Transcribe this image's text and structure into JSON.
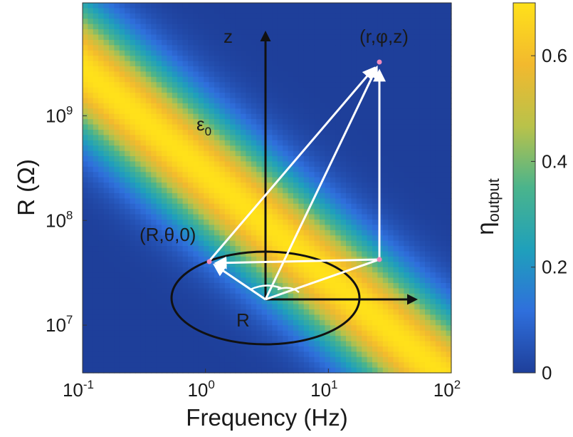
{
  "chart_data": {
    "type": "heatmap",
    "xlabel": "Frequency (Hz)",
    "ylabel": "R (Ω)",
    "x_scale": "log",
    "y_scale": "log",
    "xlim": [
      0.1,
      100
    ],
    "ylim": [
      3500000,
      12000000000
    ],
    "x_ticks": [
      {
        "value": 0.1,
        "mantissa": "10",
        "exp": "-1"
      },
      {
        "value": 1,
        "mantissa": "10",
        "exp": "0"
      },
      {
        "value": 10,
        "mantissa": "10",
        "exp": "1"
      },
      {
        "value": 100,
        "mantissa": "10",
        "exp": "2"
      }
    ],
    "y_ticks": [
      {
        "value": 10000000,
        "mantissa": "10",
        "exp": "7"
      },
      {
        "value": 100000000,
        "mantissa": "10",
        "exp": "8"
      },
      {
        "value": 1000000000,
        "mantissa": "10",
        "exp": "9"
      }
    ],
    "colorbar": {
      "label_main": "η",
      "label_sub": "output",
      "range": [
        0,
        0.7
      ],
      "ticks": [
        {
          "value": 0,
          "label": "0"
        },
        {
          "value": 0.2,
          "label": "0.2"
        },
        {
          "value": 0.4,
          "label": "0.4"
        },
        {
          "value": 0.6,
          "label": "0.6"
        }
      ],
      "colors": [
        "#1e3f9a",
        "#2f6fdc",
        "#1fa0bb",
        "#4ab48c",
        "#b9c24a",
        "#f2b92e",
        "#ffe11a"
      ]
    },
    "field": {
      "description_of_model": "efficiency peaks along diagonal band where R·f ≈ constant",
      "peak_value": 0.7,
      "peak_log_RF": 8.45,
      "band_width_decades": 0.45
    },
    "annotations": {
      "eps": {
        "main": "ε",
        "sub": "0",
        "x": 0.9,
        "y": 900000000
      },
      "z_label": {
        "text": "z"
      },
      "point_top": {
        "text": "(r,φ,z)"
      },
      "point_left": {
        "text": "(R,θ,0)"
      },
      "r_label": {
        "text": "R"
      }
    }
  }
}
